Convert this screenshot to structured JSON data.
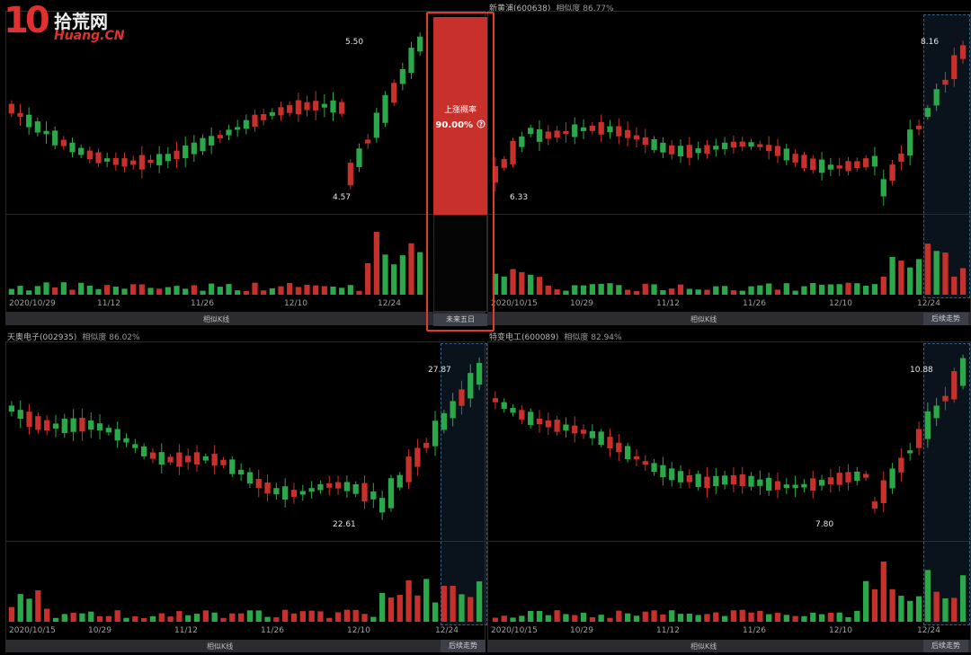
{
  "colors": {
    "up": "#c8302b",
    "down": "#2aa84a",
    "accent": "#e03a30",
    "highlight": "#3b5f80"
  },
  "logo": {
    "digits": "10",
    "cn": "拾荒网",
    "en": "Huang.CN"
  },
  "probability": {
    "label": "上涨概率",
    "value": "90.00%",
    "help_icon": "question-circle-icon",
    "footer": "未来五日"
  },
  "panels": [
    {
      "id": "p1",
      "title": "",
      "similarity": "",
      "dates": [
        "2020/10/29",
        "11/12",
        "11/26",
        "12/10",
        "12/24"
      ],
      "footer_main": "相似K线",
      "footer_tag": "",
      "hi": "5.50",
      "lo": "4.57"
    },
    {
      "id": "p2",
      "title": "新黄浦(600638)",
      "similarity": "相似度 86.77%",
      "dates": [
        "2020/10/15",
        "10/29",
        "11/12",
        "11/26",
        "12/10",
        "12/24"
      ],
      "footer_main": "相似K线",
      "footer_tag": "后续走势",
      "hi": "8.16",
      "lo": "6.33"
    },
    {
      "id": "p3",
      "title": "天奥电子(002935)",
      "similarity": "相似度 86.02%",
      "dates": [
        "2020/10/15",
        "10/29",
        "11/12",
        "11/26",
        "12/10",
        "12/24"
      ],
      "footer_main": "相似K线",
      "footer_tag": "后续走势",
      "hi": "27.87",
      "lo": "22.61"
    },
    {
      "id": "p4",
      "title": "特变电工(600089)",
      "similarity": "相似度 82.94%",
      "dates": [
        "2020/10/15",
        "10/29",
        "11/12",
        "11/26",
        "12/10",
        "12/24"
      ],
      "footer_main": "相似K线",
      "footer_tag": "后续走势",
      "hi": "10.88",
      "lo": "7.80"
    }
  ]
}
